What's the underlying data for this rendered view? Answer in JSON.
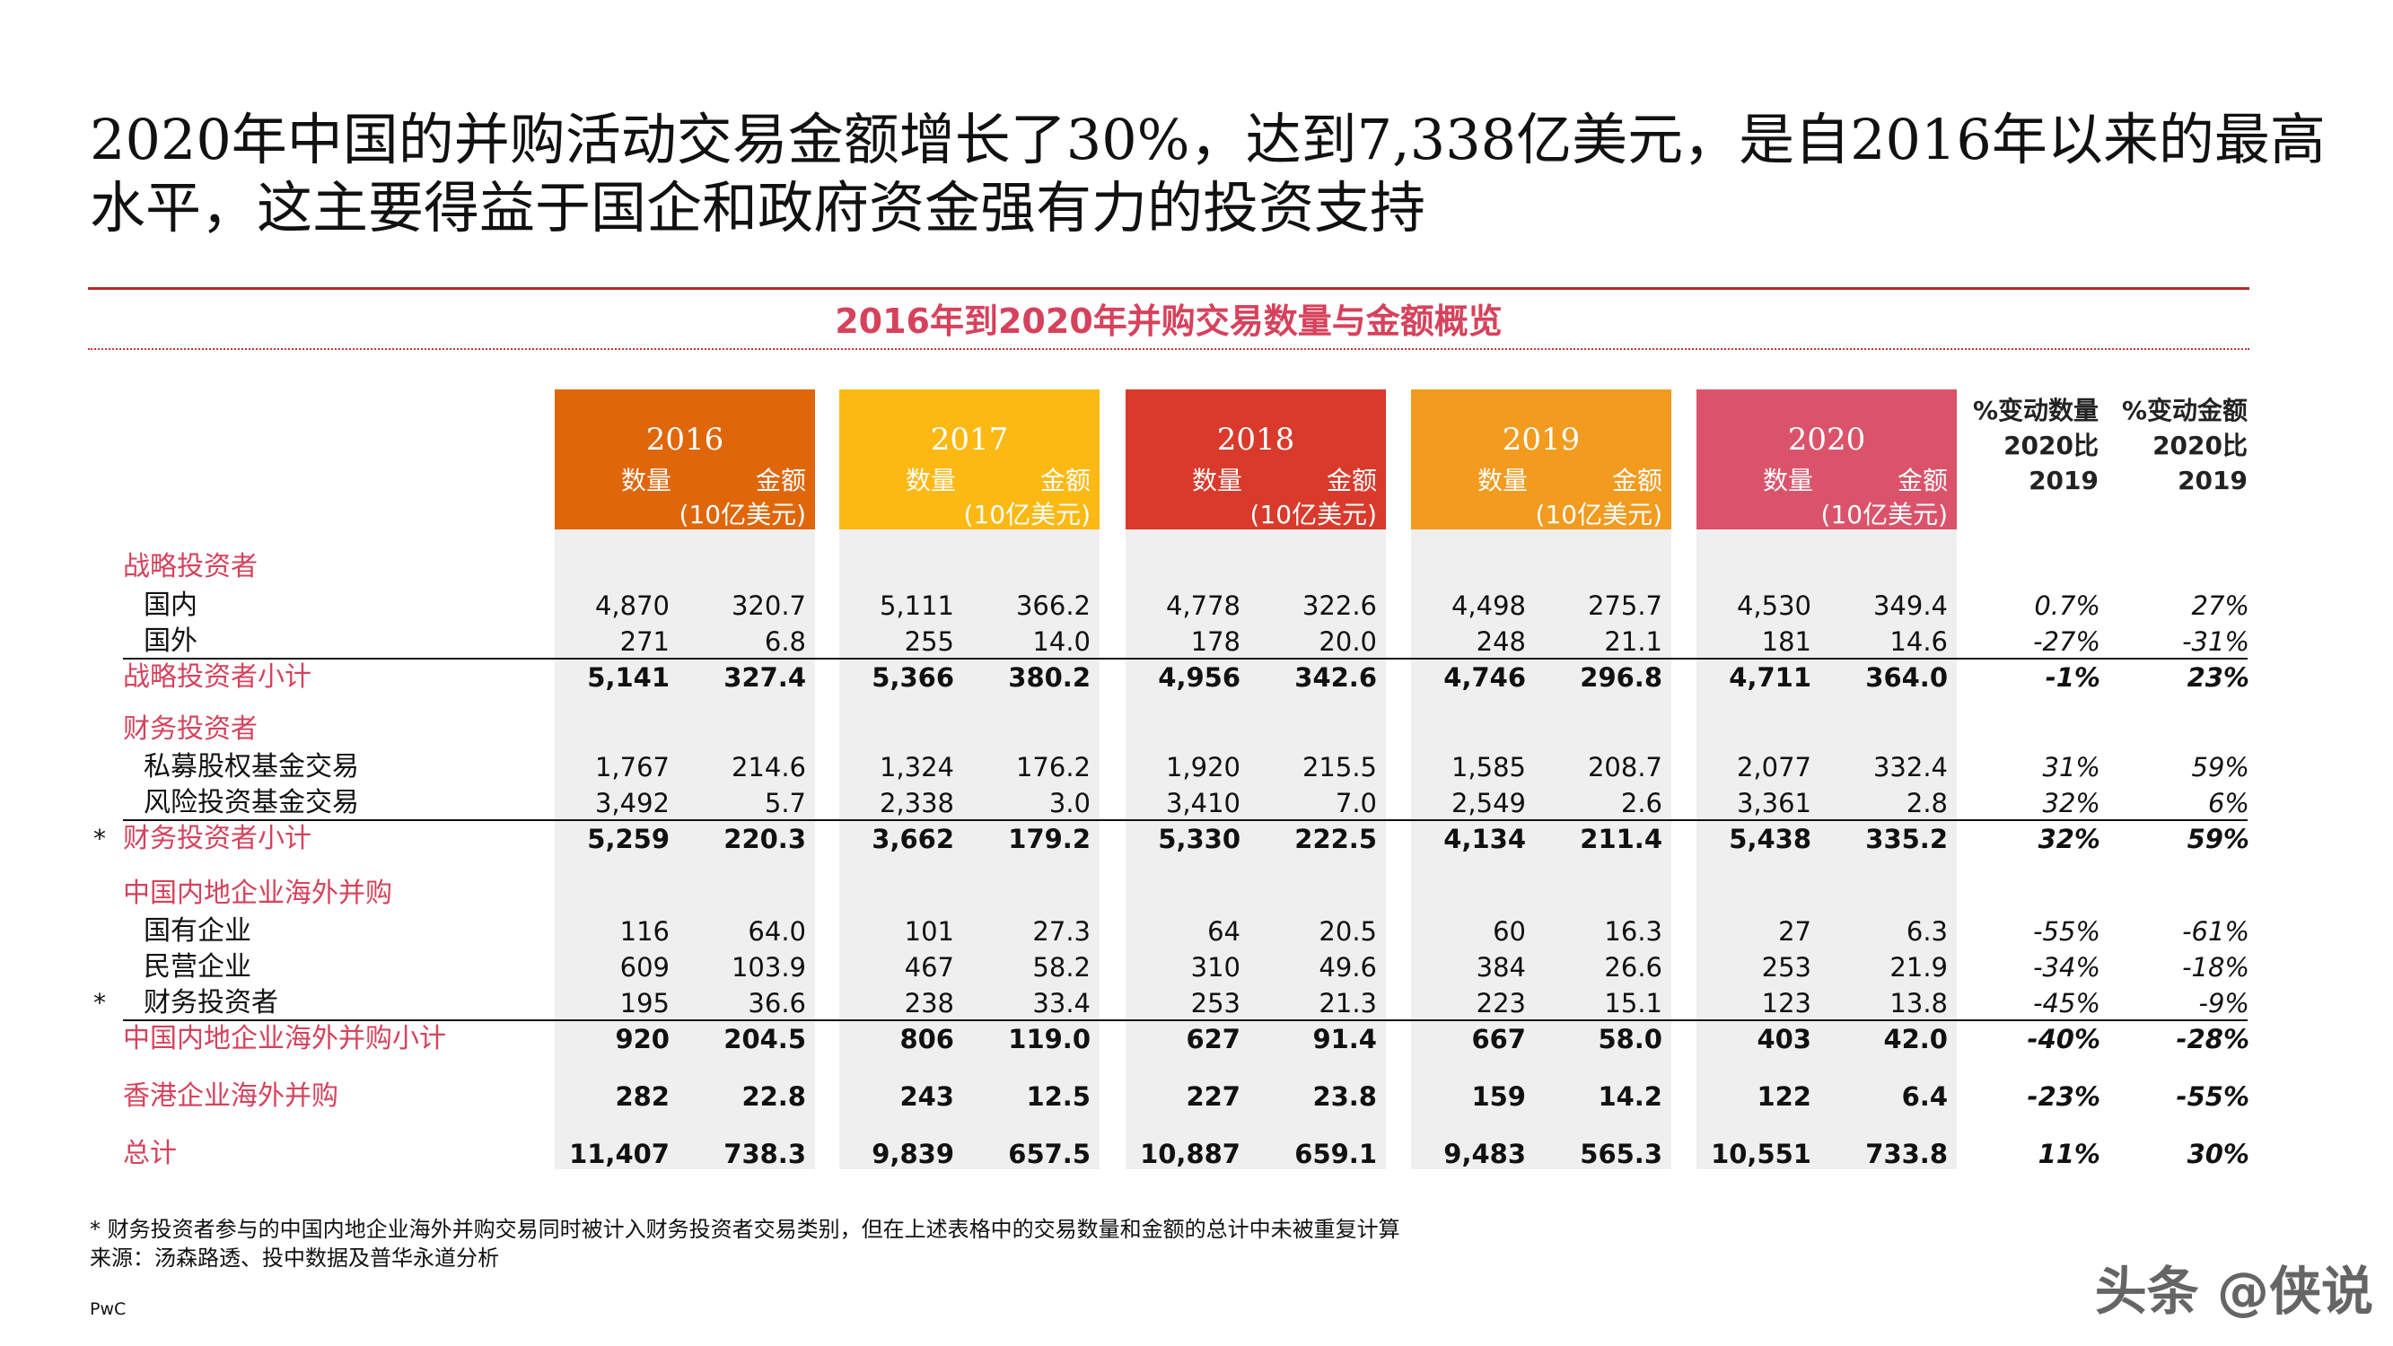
{
  "title": "2020年中国的并购活动交易金额增长了30%，达到7,338亿美元，是自2016年以来的最高水平，这主要得益于国企和政府资金强有力的投资支持",
  "subtitle": "2016年到2020年并购交易数量与金额概览",
  "colors": {
    "accent_red": "#b22a2a",
    "pink_text": "#d6425c",
    "y2016": "#e0660a",
    "y2017": "#fdb913",
    "y2018": "#d93a2b",
    "y2019": "#f29b1f",
    "y2020": "#db536a"
  },
  "years": [
    {
      "year": "2016",
      "count_label": "数量",
      "amount_label": "金额",
      "unit": "(10亿美元)"
    },
    {
      "year": "2017",
      "count_label": "数量",
      "amount_label": "金额",
      "unit": "(10亿美元)"
    },
    {
      "year": "2018",
      "count_label": "数量",
      "amount_label": "金额",
      "unit": "(10亿美元)"
    },
    {
      "year": "2019",
      "count_label": "数量",
      "amount_label": "金额",
      "unit": "(10亿美元)"
    },
    {
      "year": "2020",
      "count_label": "数量",
      "amount_label": "金额",
      "unit": "(10亿美元)"
    }
  ],
  "pct_headers": {
    "count": [
      "%变动数量",
      "2020比",
      "2019"
    ],
    "amount": [
      "%变动金额",
      "2020比",
      "2019"
    ]
  },
  "rows": [
    {
      "label": "战略投资者",
      "type": "cat"
    },
    {
      "label": "国内",
      "type": "sub",
      "values": [
        "4,870",
        "320.7",
        "5,111",
        "366.2",
        "4,778",
        "322.6",
        "4,498",
        "275.7",
        "4,530",
        "349.4"
      ],
      "pct": [
        "0.7%",
        "27%"
      ]
    },
    {
      "label": "国外",
      "type": "sub",
      "values": [
        "271",
        "6.8",
        "255",
        "14.0",
        "178",
        "20.0",
        "248",
        "21.1",
        "181",
        "14.6"
      ],
      "pct": [
        "-27%",
        "-31%"
      ]
    },
    {
      "label": "战略投资者小计",
      "type": "sum",
      "values": [
        "5,141",
        "327.4",
        "5,366",
        "380.2",
        "4,956",
        "342.6",
        "4,746",
        "296.8",
        "4,711",
        "364.0"
      ],
      "pct": [
        "-1%",
        "23%"
      ]
    },
    {
      "label": "财务投资者",
      "type": "cat"
    },
    {
      "label": "私募股权基金交易",
      "type": "sub",
      "values": [
        "1,767",
        "214.6",
        "1,324",
        "176.2",
        "1,920",
        "215.5",
        "1,585",
        "208.7",
        "2,077",
        "332.4"
      ],
      "pct": [
        "31%",
        "59%"
      ]
    },
    {
      "label": "风险投资基金交易",
      "type": "sub",
      "values": [
        "3,492",
        "5.7",
        "2,338",
        "3.0",
        "3,410",
        "7.0",
        "2,549",
        "2.6",
        "3,361",
        "2.8"
      ],
      "pct": [
        "32%",
        "6%"
      ]
    },
    {
      "label": "财务投资者小计",
      "type": "sum",
      "star": "*",
      "values": [
        "5,259",
        "220.3",
        "3,662",
        "179.2",
        "5,330",
        "222.5",
        "4,134",
        "211.4",
        "5,438",
        "335.2"
      ],
      "pct": [
        "32%",
        "59%"
      ]
    },
    {
      "label": "中国内地企业海外并购",
      "type": "cat"
    },
    {
      "label": "国有企业",
      "type": "sub",
      "values": [
        "116",
        "64.0",
        "101",
        "27.3",
        "64",
        "20.5",
        "60",
        "16.3",
        "27",
        "6.3"
      ],
      "pct": [
        "-55%",
        "-61%"
      ]
    },
    {
      "label": "民营企业",
      "type": "sub",
      "values": [
        "609",
        "103.9",
        "467",
        "58.2",
        "310",
        "49.6",
        "384",
        "26.6",
        "253",
        "21.9"
      ],
      "pct": [
        "-34%",
        "-18%"
      ]
    },
    {
      "label": "财务投资者",
      "type": "sub",
      "star": "*",
      "values": [
        "195",
        "36.6",
        "238",
        "33.4",
        "253",
        "21.3",
        "223",
        "15.1",
        "123",
        "13.8"
      ],
      "pct": [
        "-45%",
        "-9%"
      ]
    },
    {
      "label": "中国内地企业海外并购小计",
      "type": "sum",
      "values": [
        "920",
        "204.5",
        "806",
        "119.0",
        "627",
        "91.4",
        "667",
        "58.0",
        "403",
        "42.0"
      ],
      "pct": [
        "-40%",
        "-28%"
      ]
    },
    {
      "label": "香港企业海外并购",
      "type": "sum",
      "values": [
        "282",
        "22.8",
        "243",
        "12.5",
        "227",
        "23.8",
        "159",
        "14.2",
        "122",
        "6.4"
      ],
      "pct": [
        "-23%",
        "-55%"
      ]
    },
    {
      "label": "总计",
      "type": "sum",
      "values": [
        "11,407",
        "738.3",
        "9,839",
        "657.5",
        "10,887",
        "659.1",
        "9,483",
        "565.3",
        "10,551",
        "733.8"
      ],
      "pct": [
        "11%",
        "30%"
      ]
    }
  ],
  "footnote": "* 财务投资者参与的中国内地企业海外并购交易同时被计入财务投资者交易类别，但在上述表格中的交易数量和金额的总计中未被重复计算",
  "source": "来源：汤森路透、投中数据及普华永道分析",
  "brand": "PwC",
  "watermark": "头条 @侠说"
}
